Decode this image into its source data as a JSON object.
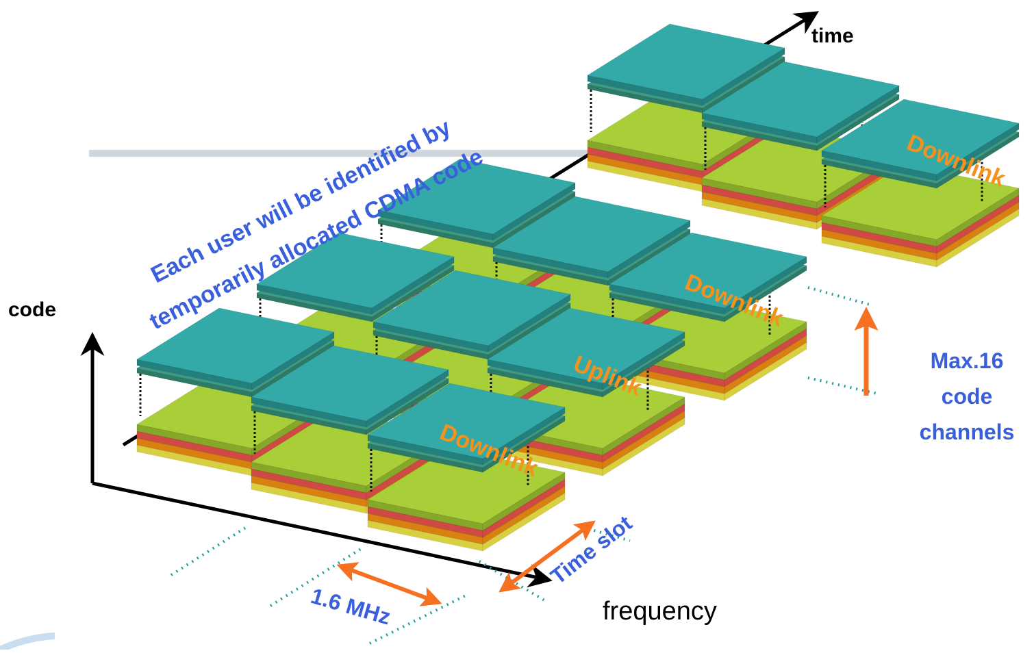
{
  "axes": {
    "time": "time",
    "code": "code",
    "frequency": "frequency"
  },
  "annotation": {
    "line1": "Each user will be identified by",
    "line2": "temporarily allocated CDMA code"
  },
  "labels": {
    "downlink": "Downlink",
    "uplink": "Uplink",
    "time_slot": "Time slot",
    "bandwidth": "1.6 MHz",
    "max_line1": "Max.16",
    "max_line2": "code",
    "max_line3": "channels"
  },
  "colors": {
    "teal_top": "#33aaa8",
    "teal_side": "#24807e",
    "teal_sheet": "#3d9a84",
    "lime": "#a9cf38",
    "lime_side": "#86a82a",
    "red": "#f0605a",
    "orange": "#fa9a18",
    "yellow": "#f0e860",
    "blue_text": "#3a5fdc",
    "orange_text": "#f5921e",
    "arrow_orange": "#f57020",
    "dotted_teal": "#1a9a9a"
  }
}
